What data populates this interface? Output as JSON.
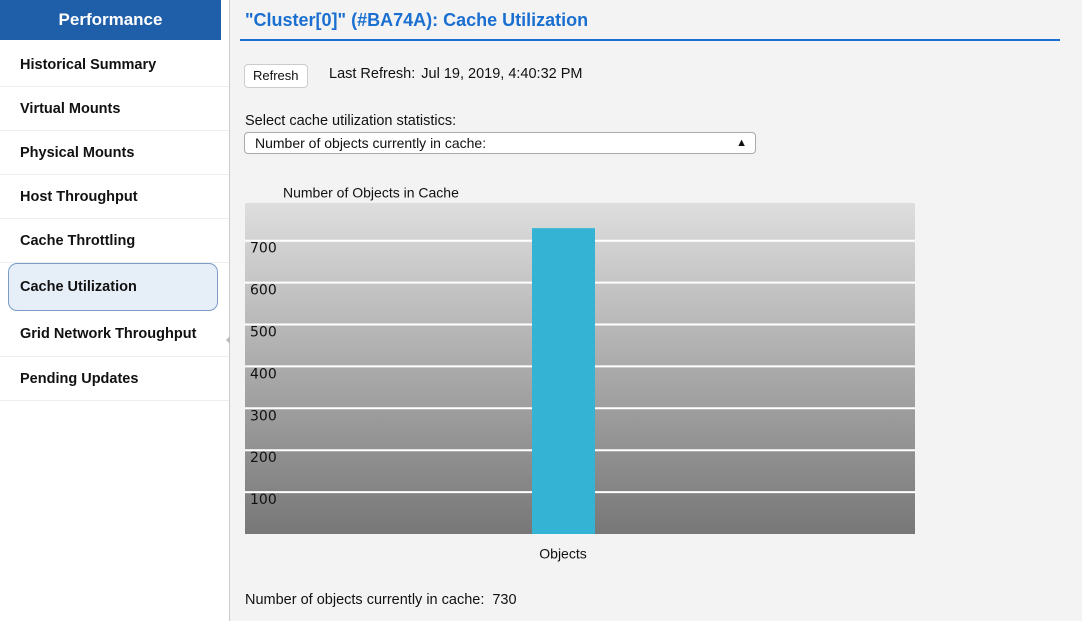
{
  "sidebar": {
    "title": "Performance",
    "items": [
      "Historical Summary",
      "Virtual Mounts",
      "Physical Mounts",
      "Host Throughput",
      "Cache Throttling",
      "Cache Utilization",
      "Grid Network Throughput",
      "Pending Updates"
    ],
    "selected": 5
  },
  "header": {
    "title": "\"Cluster[0]\" (#BA74A): Cache Utilization"
  },
  "refresh": {
    "button": "Refresh",
    "label": "Last Refresh:",
    "time": "Jul 19, 2019, 4:40:32 PM"
  },
  "select": {
    "label": "Select cache utilization statistics:",
    "value": "Number of objects currently in cache:"
  },
  "chart_data": {
    "type": "bar",
    "title": "Number of Objects in Cache",
    "categories": [
      "Objects"
    ],
    "values": [
      730
    ],
    "color": "#35b3d4",
    "ylim": [
      0,
      790
    ],
    "yticks": [
      100,
      200,
      300,
      400,
      500,
      600,
      700
    ],
    "grid": true
  },
  "summary": {
    "label": "Number of objects currently in cache:"
  }
}
